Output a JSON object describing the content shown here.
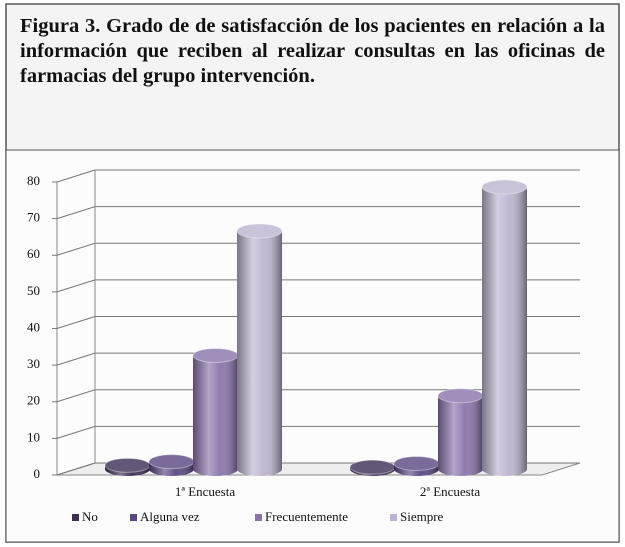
{
  "chart_data": {
    "type": "bar3d",
    "title": "Figura 3. Grado de  de satisfacción de los pacientes en relación a la información que reciben al realizar consultas en las oficinas de farmacias del grupo intervención.",
    "categories": [
      "1ª Encuesta",
      "2ª Encuesta"
    ],
    "series": [
      {
        "name": "No",
        "color": "#3d2d55",
        "values": [
          1,
          0.5
        ]
      },
      {
        "name": "Alguna vez",
        "color": "#5a4682",
        "values": [
          2,
          1.5
        ]
      },
      {
        "name": "Frecuentemente",
        "color": "#8a74ab",
        "values": [
          31,
          20
        ]
      },
      {
        "name": "Siempre",
        "color": "#bcb4d0",
        "values": [
          65,
          77
        ]
      }
    ],
    "ylim": [
      0,
      80
    ],
    "yticks": [
      0,
      10,
      20,
      30,
      40,
      50,
      60,
      70,
      80
    ],
    "grid": true,
    "legend": "bottom"
  }
}
